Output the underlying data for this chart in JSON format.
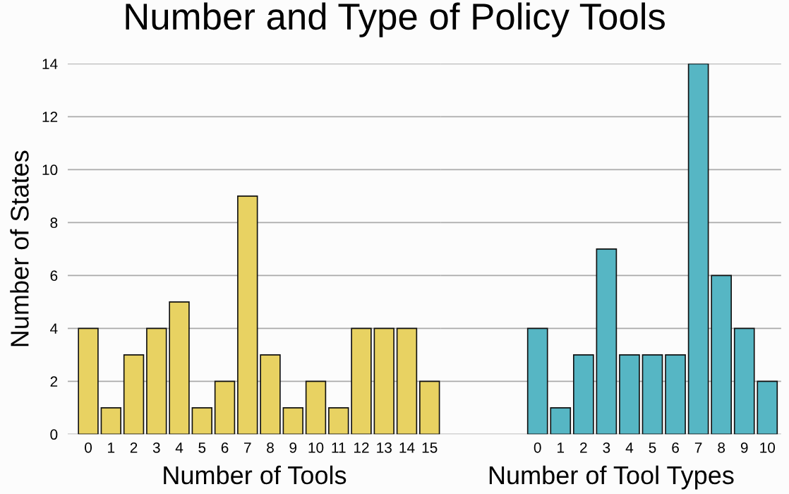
{
  "chart_data": [
    {
      "type": "bar",
      "title": "Number and Type of Policy Tools",
      "xlabel": "Number of Tools",
      "ylabel": "Number of States",
      "categories": [
        "0",
        "1",
        "2",
        "3",
        "4",
        "5",
        "6",
        "7",
        "8",
        "9",
        "10",
        "11",
        "12",
        "13",
        "14",
        "15"
      ],
      "values": [
        4,
        1,
        3,
        4,
        5,
        1,
        2,
        9,
        3,
        1,
        2,
        1,
        4,
        4,
        4,
        2
      ],
      "color": "#e8d262",
      "ylim": [
        0,
        14
      ],
      "yticks": [
        0,
        2,
        4,
        6,
        8,
        10,
        12,
        14
      ],
      "grid": "y"
    },
    {
      "type": "bar",
      "xlabel": "Number of Tool Types",
      "categories": [
        "0",
        "1",
        "2",
        "3",
        "4",
        "5",
        "6",
        "7",
        "8",
        "9",
        "10"
      ],
      "values": [
        4,
        1,
        3,
        7,
        3,
        3,
        3,
        14,
        6,
        4,
        2
      ],
      "color": "#56b6c4",
      "ylim": [
        0,
        14
      ],
      "yticks": [
        0,
        2,
        4,
        6,
        8,
        10,
        12,
        14
      ],
      "grid": "y",
      "tick_labels": "x"
    }
  ]
}
